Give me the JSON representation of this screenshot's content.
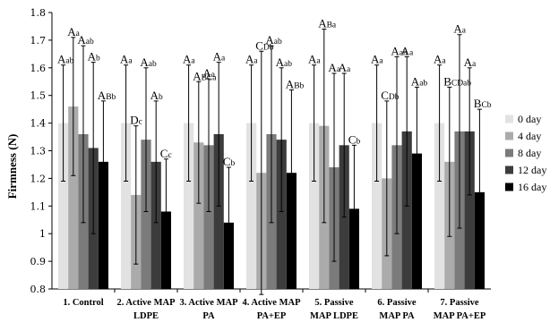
{
  "chart_data": {
    "type": "bar",
    "title": "",
    "xlabel": "",
    "ylabel": "Firmness (N)",
    "ylim": [
      0.8,
      1.8
    ],
    "yticks": [
      "0.8",
      "0.9",
      "1",
      "1.1",
      "1.2",
      "1.3",
      "1.4",
      "1.5",
      "1.6",
      "1.7",
      "1.8"
    ],
    "grid": false,
    "legend_position": "right",
    "categories": [
      [
        "1. Control"
      ],
      [
        "2. Active MAP",
        "LDPE"
      ],
      [
        "3. Active MAP",
        "PA"
      ],
      [
        "4. Active MAP",
        "PA+EP"
      ],
      [
        "5. Passive",
        "MAP LDPE"
      ],
      [
        "6. Passive",
        "MAP PA"
      ],
      [
        "7. Passive",
        "MAP PA+EP"
      ]
    ],
    "series": [
      {
        "name": "0 day",
        "color": "#e2e2e2",
        "values": [
          1.4,
          1.4,
          1.4,
          1.4,
          1.4,
          1.4,
          1.4
        ],
        "errors": [
          0.21,
          0.21,
          0.21,
          0.21,
          0.21,
          0.21,
          0.21
        ]
      },
      {
        "name": "4 day",
        "color": "#ababab",
        "values": [
          1.46,
          1.14,
          1.33,
          1.22,
          1.39,
          1.2,
          1.26
        ],
        "errors": [
          0.25,
          0.25,
          0.22,
          0.44,
          0.35,
          0.28,
          0.27
        ]
      },
      {
        "name": "8 day",
        "color": "#7b7b7b",
        "values": [
          1.36,
          1.34,
          1.32,
          1.36,
          1.24,
          1.32,
          1.37
        ],
        "errors": [
          0.32,
          0.26,
          0.24,
          0.32,
          0.34,
          0.32,
          0.35
        ]
      },
      {
        "name": "12 day",
        "color": "#3c3c3c",
        "values": [
          1.31,
          1.26,
          1.36,
          1.34,
          1.32,
          1.37,
          1.37
        ],
        "errors": [
          0.31,
          0.22,
          0.26,
          0.26,
          0.26,
          0.27,
          0.23
        ]
      },
      {
        "name": "16 day",
        "color": "#000000",
        "values": [
          1.26,
          1.08,
          1.04,
          1.22,
          1.09,
          1.29,
          1.15
        ],
        "errors": [
          0.22,
          0.19,
          0.2,
          0.3,
          0.23,
          0.24,
          0.3
        ]
      }
    ],
    "significance_labels": [
      [
        [
          "A",
          "ab"
        ],
        [
          "A",
          "a"
        ],
        [
          "A",
          "ab"
        ],
        [
          "A",
          "b"
        ],
        [
          "A",
          "Bb"
        ]
      ],
      [
        [
          "A",
          "a"
        ],
        [
          "D",
          "c"
        ],
        [
          "A",
          "ab"
        ],
        [
          "A",
          "b"
        ],
        [
          "C",
          "c"
        ]
      ],
      [
        [
          "A",
          "a"
        ],
        [
          "A",
          "BCa"
        ],
        [
          "A",
          "a"
        ],
        [
          "A",
          "a"
        ],
        [
          "C",
          "b"
        ]
      ],
      [
        [
          "A",
          "a"
        ],
        [
          "C",
          "Db"
        ],
        [
          "A",
          "ab"
        ],
        [
          "A",
          "ab"
        ],
        [
          "A",
          "Bb"
        ]
      ],
      [
        [
          "A",
          "a"
        ],
        [
          "A",
          "Ba"
        ],
        [
          "A",
          "a"
        ],
        [
          "A",
          "a"
        ],
        [
          "C",
          "b"
        ]
      ],
      [
        [
          "A",
          "a"
        ],
        [
          "C",
          "Db"
        ],
        [
          "A",
          "ab"
        ],
        [
          "A",
          "a"
        ],
        [
          "A",
          "ab"
        ]
      ],
      [
        [
          "A",
          "a"
        ],
        [
          "B",
          "CDab"
        ],
        [
          "A",
          "a"
        ],
        [
          "A",
          "a"
        ],
        [
          "B",
          "Cb"
        ]
      ]
    ]
  }
}
